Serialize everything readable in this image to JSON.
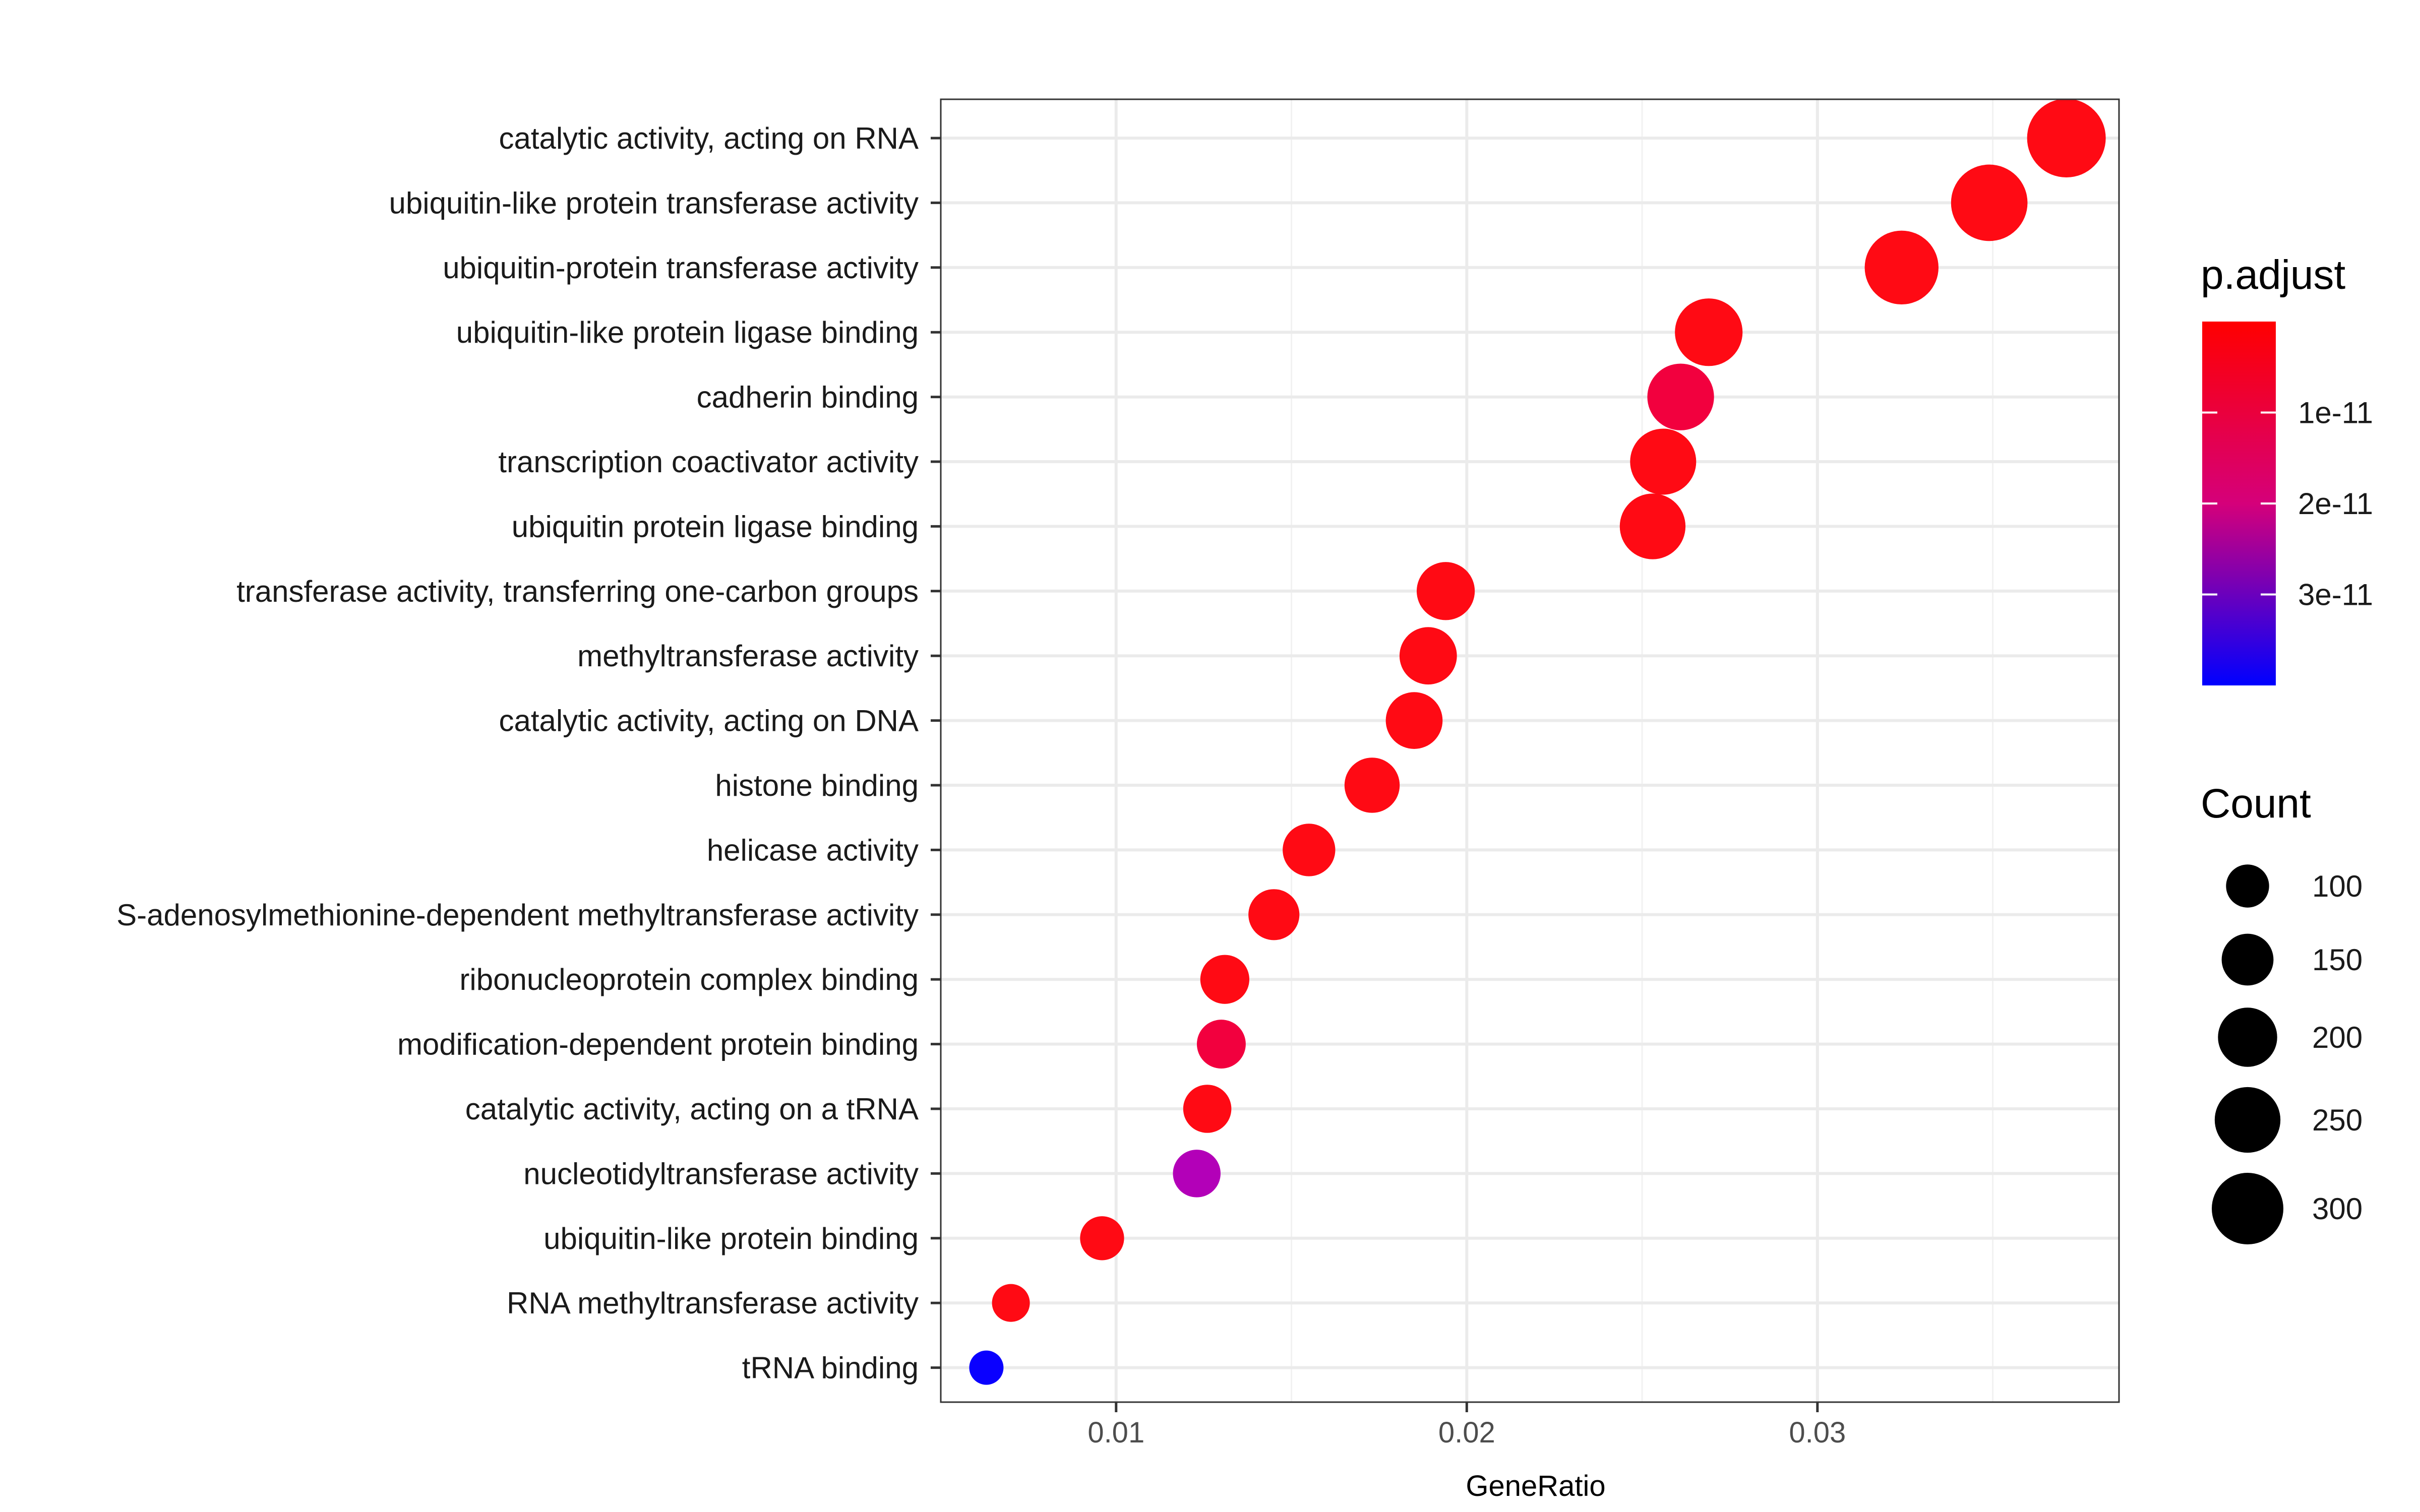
{
  "chart_data": {
    "type": "scatter",
    "xlabel": "GeneRatio",
    "ylabel": "",
    "xlim": [
      0.005,
      0.0386
    ],
    "xticks": [
      0.01,
      0.02,
      0.03
    ],
    "xtick_labels": [
      "0.01",
      "0.02",
      "0.03"
    ],
    "grid": true,
    "points": [
      {
        "term": "tRNA binding",
        "gene_ratio": 0.0063,
        "count": 60,
        "p_adjust": 3.8e-11,
        "color": "#0a00ff"
      },
      {
        "term": "RNA methyltransferase activity",
        "gene_ratio": 0.007,
        "count": 75,
        "p_adjust": 1e-12,
        "color": "#ff0a14"
      },
      {
        "term": "ubiquitin-like protein binding",
        "gene_ratio": 0.0096,
        "count": 105,
        "p_adjust": 1e-12,
        "color": "#ff0a14"
      },
      {
        "term": "nucleotidyltransferase activity",
        "gene_ratio": 0.0123,
        "count": 125,
        "p_adjust": 2.2e-11,
        "color": "#b300b8"
      },
      {
        "term": "catalytic activity, acting on a tRNA",
        "gene_ratio": 0.0126,
        "count": 128,
        "p_adjust": 1e-12,
        "color": "#ff0a14"
      },
      {
        "term": "modification-dependent protein binding",
        "gene_ratio": 0.013,
        "count": 132,
        "p_adjust": 4e-12,
        "color": "#f2003e"
      },
      {
        "term": "ribonucleoprotein complex binding",
        "gene_ratio": 0.0131,
        "count": 133,
        "p_adjust": 1e-12,
        "color": "#ff0a14"
      },
      {
        "term": "S-adenosylmethionine-dependent methyltransferase activity",
        "gene_ratio": 0.0145,
        "count": 145,
        "p_adjust": 1e-12,
        "color": "#ff0a14"
      },
      {
        "term": "helicase activity",
        "gene_ratio": 0.0155,
        "count": 155,
        "p_adjust": 1e-12,
        "color": "#ff0a14"
      },
      {
        "term": "histone binding",
        "gene_ratio": 0.0173,
        "count": 172,
        "p_adjust": 1e-12,
        "color": "#ff0a14"
      },
      {
        "term": "catalytic activity, acting on DNA",
        "gene_ratio": 0.0185,
        "count": 183,
        "p_adjust": 1e-12,
        "color": "#ff0a14"
      },
      {
        "term": "methyltransferase activity",
        "gene_ratio": 0.0189,
        "count": 187,
        "p_adjust": 1e-12,
        "color": "#ff0a14"
      },
      {
        "term": "transferase activity, transferring one-carbon groups",
        "gene_ratio": 0.0194,
        "count": 192,
        "p_adjust": 1e-12,
        "color": "#ff0a14"
      },
      {
        "term": "ubiquitin protein ligase binding",
        "gene_ratio": 0.0253,
        "count": 250,
        "p_adjust": 1e-12,
        "color": "#ff0a14"
      },
      {
        "term": "transcription coactivator activity",
        "gene_ratio": 0.0256,
        "count": 253,
        "p_adjust": 1e-12,
        "color": "#ff0a14"
      },
      {
        "term": "cadherin binding",
        "gene_ratio": 0.0261,
        "count": 258,
        "p_adjust": 4e-12,
        "color": "#f2003e"
      },
      {
        "term": "ubiquitin-like protein ligase binding",
        "gene_ratio": 0.0269,
        "count": 266,
        "p_adjust": 1e-12,
        "color": "#ff0a14"
      },
      {
        "term": "ubiquitin-protein transferase activity",
        "gene_ratio": 0.0324,
        "count": 320,
        "p_adjust": 1e-12,
        "color": "#ff0a14"
      },
      {
        "term": "ubiquitin-like protein transferase activity",
        "gene_ratio": 0.0349,
        "count": 345,
        "p_adjust": 1e-12,
        "color": "#ff0a14"
      },
      {
        "term": "catalytic activity, acting on RNA",
        "gene_ratio": 0.0371,
        "count": 366,
        "p_adjust": 1e-12,
        "color": "#ff0a14"
      }
    ],
    "legend_color": {
      "title": "p.adjust",
      "placement": "right",
      "range": [
        0,
        4e-11
      ],
      "ticks": [
        1e-11,
        2e-11,
        3e-11
      ],
      "tick_labels": [
        "1e-11",
        "2e-11",
        "3e-11"
      ],
      "low_color": "#ff0000",
      "high_color": "#0000ff"
    },
    "legend_size": {
      "title": "Count",
      "placement": "right",
      "values": [
        100,
        150,
        200,
        250,
        300
      ],
      "labels": [
        "100",
        "150",
        "200",
        "250",
        "300"
      ]
    }
  }
}
